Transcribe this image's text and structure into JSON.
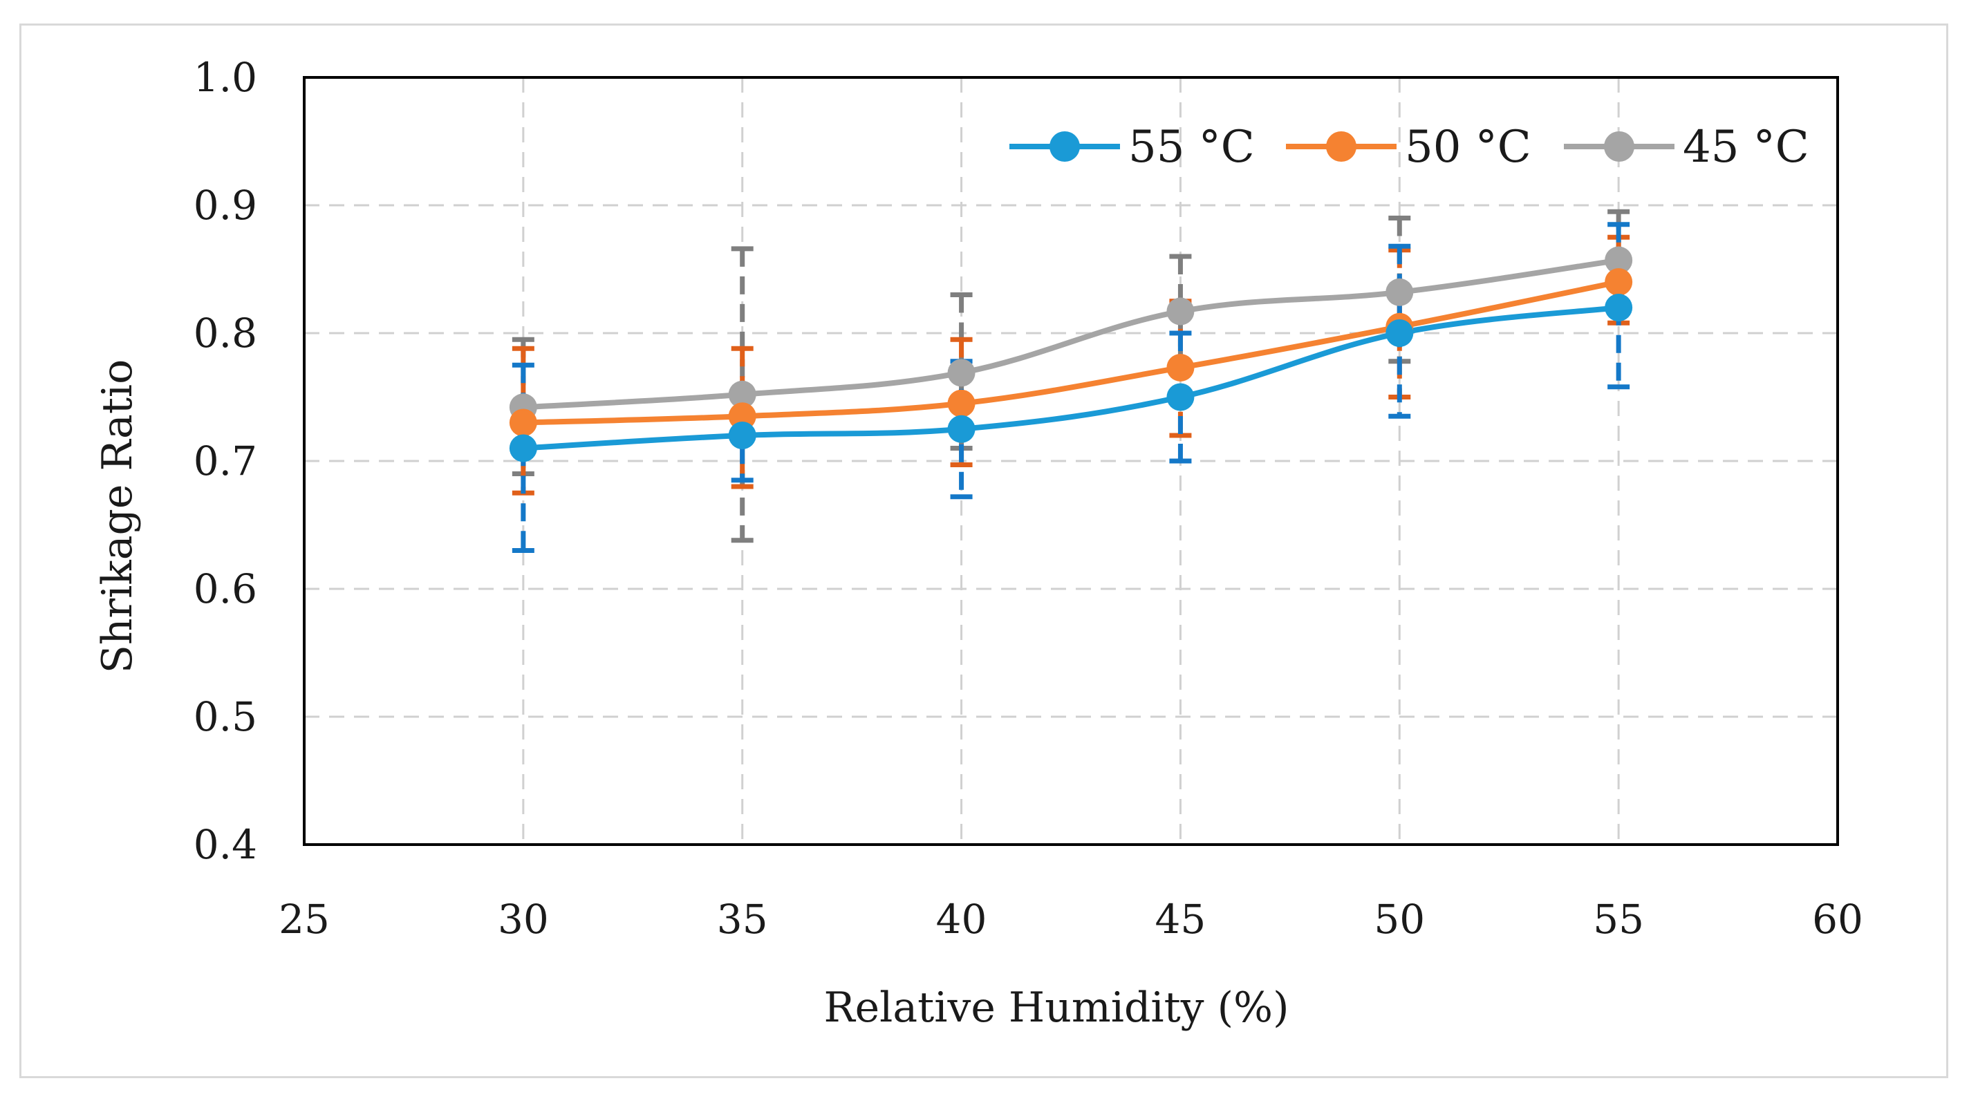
{
  "chart_data": {
    "type": "line",
    "xlabel": "Relative Humidity (%)",
    "ylabel": "Shrikage  Ratio",
    "xlim": [
      25,
      60
    ],
    "ylim": [
      0.4,
      1.0
    ],
    "xticks": [
      "25",
      "30",
      "35",
      "40",
      "45",
      "50",
      "55",
      "60"
    ],
    "yticks": [
      "0.4",
      "0.5",
      "0.6",
      "0.7",
      "0.8",
      "0.9",
      "1.0"
    ],
    "grid": true,
    "legend": "top-right",
    "x": [
      30,
      35,
      40,
      45,
      50,
      55
    ],
    "series": [
      {
        "name": "55 °C",
        "color": "#1a9ad6",
        "values": [
          0.71,
          0.72,
          0.725,
          0.75,
          0.8,
          0.82
        ],
        "error_low": [
          0.63,
          0.685,
          0.672,
          0.7,
          0.735,
          0.758
        ],
        "error_high": [
          0.775,
          0.755,
          0.778,
          0.8,
          0.868,
          0.885
        ]
      },
      {
        "name": "50 °C",
        "color": "#f58231",
        "values": [
          0.73,
          0.735,
          0.745,
          0.773,
          0.805,
          0.84
        ],
        "error_low": [
          0.675,
          0.68,
          0.697,
          0.72,
          0.75,
          0.808
        ],
        "error_high": [
          0.788,
          0.788,
          0.795,
          0.825,
          0.865,
          0.875
        ]
      },
      {
        "name": "45 °C",
        "color": "#a5a5a5",
        "values": [
          0.742,
          0.752,
          0.769,
          0.817,
          0.832,
          0.857
        ],
        "error_low": [
          0.69,
          0.638,
          0.71,
          0.775,
          0.778,
          0.82
        ],
        "error_high": [
          0.795,
          0.866,
          0.83,
          0.86,
          0.89,
          0.895
        ]
      }
    ]
  }
}
